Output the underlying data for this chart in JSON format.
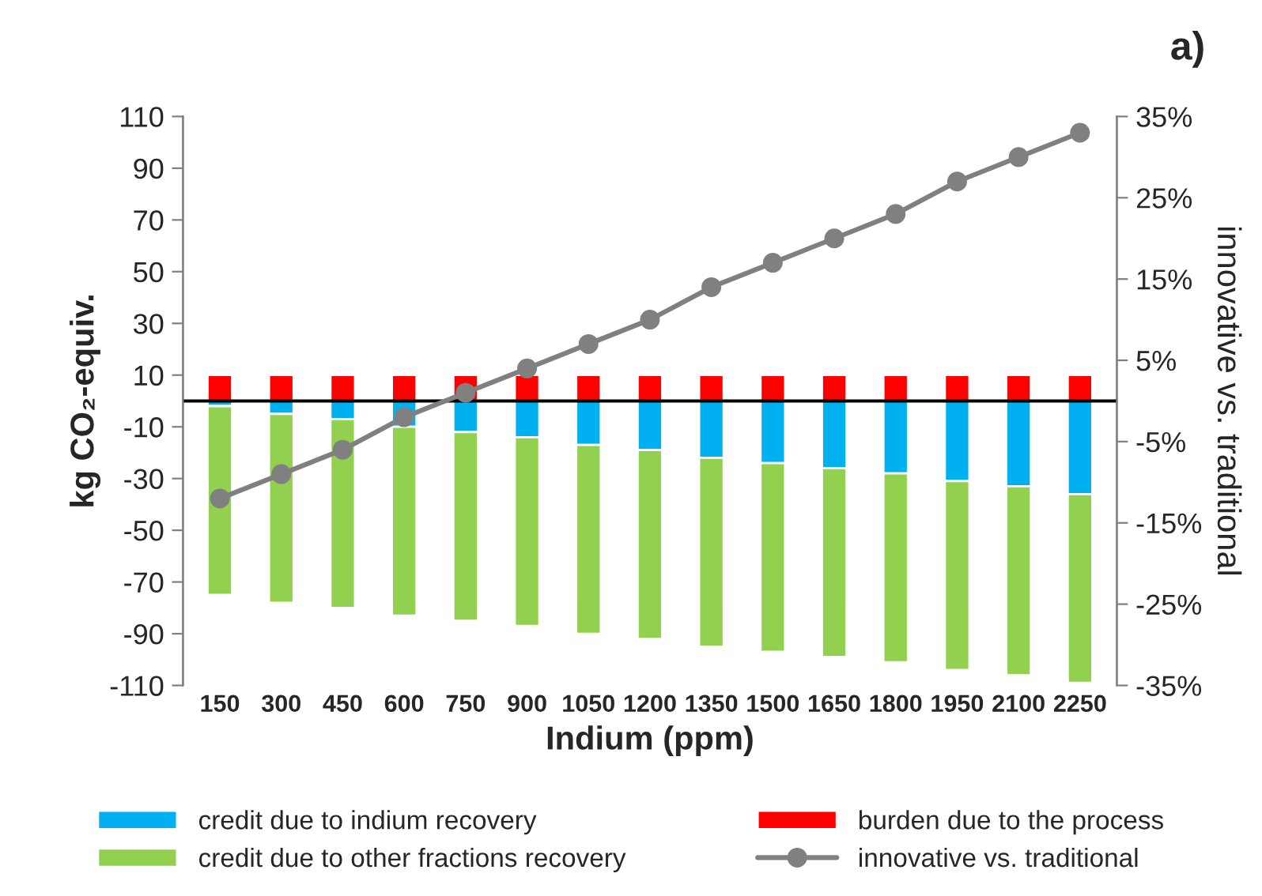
{
  "chart_data": {
    "type": "bar",
    "stacked": true,
    "title": "a)",
    "xlabel": "Indium (ppm)",
    "ylabel": "kg CO₂-equiv.",
    "y2label": "innovative vs. traditional",
    "categories": [
      "150",
      "300",
      "450",
      "600",
      "750",
      "900",
      "1050",
      "1200",
      "1350",
      "1500",
      "1650",
      "1800",
      "1950",
      "2100",
      "2250"
    ],
    "series": [
      {
        "name": "credit due to indium recovery",
        "color": "#00b0f0",
        "values": [
          -2,
          -5,
          -7,
          -10,
          -12,
          -14,
          -17,
          -19,
          -22,
          -24,
          -26,
          -28,
          -31,
          -33,
          -36
        ]
      },
      {
        "name": "credit due to other fractions recovery",
        "color": "#92d050",
        "values": [
          -73,
          -73,
          -73,
          -73,
          -73,
          -73,
          -73,
          -73,
          -73,
          -73,
          -73,
          -73,
          -73,
          -73,
          -73
        ]
      },
      {
        "name": "burden due to the process",
        "color": "#ff0000",
        "values": [
          10,
          10,
          10,
          10,
          10,
          10,
          10,
          10,
          10,
          10,
          10,
          10,
          10,
          10,
          10
        ]
      },
      {
        "name": "innovative vs. traditional",
        "color": "#808080",
        "type": "line",
        "axis": "y2",
        "marker": "circle",
        "values": [
          -12,
          -9,
          -6,
          -2,
          1,
          4,
          7,
          10,
          14,
          17,
          20,
          23,
          27,
          30,
          33
        ]
      }
    ],
    "ylim": [
      -110,
      110
    ],
    "yticks": [
      -110,
      -90,
      -70,
      -50,
      -30,
      -10,
      10,
      30,
      50,
      70,
      90,
      110
    ],
    "y2lim": [
      -35,
      35
    ],
    "y2ticks": [
      {
        "value": -35,
        "label": "-35%"
      },
      {
        "value": -25,
        "label": "-25%"
      },
      {
        "value": -15,
        "label": "-15%"
      },
      {
        "value": -5,
        "label": "-5%"
      },
      {
        "value": 5,
        "label": "5%"
      },
      {
        "value": 15,
        "label": "15%"
      },
      {
        "value": 25,
        "label": "25%"
      },
      {
        "value": 35,
        "label": "35%"
      }
    ],
    "grid": false,
    "legend": "bottom"
  }
}
